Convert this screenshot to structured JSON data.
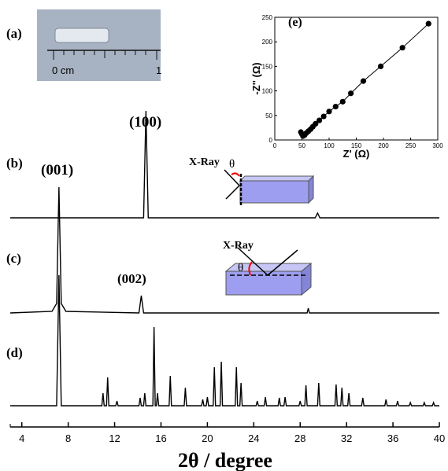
{
  "photo": {
    "label": "(a)",
    "scale_labels": [
      "0 cm",
      "1"
    ]
  },
  "chart_data": [
    {
      "type": "line",
      "xlabel": "2θ / degree",
      "xlim": [
        3,
        40
      ],
      "xticks": [
        4,
        8,
        12,
        16,
        20,
        24,
        28,
        32,
        36,
        40
      ],
      "color": "#000000",
      "series": [
        {
          "name": "(b)",
          "x": [
            3,
            14.5,
            14.7,
            14.9,
            29.3,
            29.5,
            29.7,
            40
          ],
          "values": [
            0,
            0,
            68,
            0,
            0,
            3,
            0,
            0
          ]
        },
        {
          "name": "(c)",
          "x": [
            3,
            6.6,
            7.0,
            7.2,
            7.4,
            7.8,
            14.1,
            14.3,
            14.5,
            28.6,
            28.7,
            28.8,
            40
          ],
          "values": [
            0,
            1,
            6,
            80,
            6,
            1,
            0,
            11,
            0,
            0,
            3,
            0,
            0
          ]
        },
        {
          "name": "(d)",
          "x": [
            3,
            7.0,
            7.2,
            7.4,
            10.9,
            11.0,
            11.1,
            11.3,
            11.4,
            11.5,
            12.1,
            12.2,
            12.3,
            14.1,
            14.2,
            14.3,
            14.5,
            14.6,
            14.7,
            15.3,
            15.4,
            15.5,
            15.6,
            15.7,
            15.8,
            16.7,
            16.8,
            16.9,
            18.0,
            18.1,
            18.2,
            19.5,
            19.6,
            19.7,
            19.9,
            20.0,
            20.1,
            20.5,
            20.6,
            20.7,
            21.1,
            21.2,
            21.3,
            22.4,
            22.5,
            22.6,
            22.8,
            22.9,
            23.0,
            24.2,
            24.3,
            24.4,
            24.9,
            25.0,
            25.1,
            26.1,
            26.2,
            26.3,
            26.6,
            26.7,
            26.8,
            27.9,
            28.0,
            28.1,
            28.4,
            28.5,
            28.6,
            29.5,
            29.6,
            29.7,
            31.0,
            31.1,
            31.2,
            31.5,
            31.6,
            31.7,
            32.1,
            32.2,
            32.3,
            33.3,
            33.4,
            33.5,
            35.3,
            35.4,
            35.5,
            36.3,
            36.4,
            36.5,
            37.4,
            37.5,
            37.6,
            38.6,
            38.7,
            38.8,
            39.4,
            39.5,
            39.6,
            40
          ],
          "values": [
            1,
            1,
            84,
            1,
            1,
            9,
            1,
            1,
            19,
            1,
            1,
            4,
            1,
            1,
            6,
            1,
            1,
            9,
            1,
            1,
            51,
            1,
            1,
            9,
            1,
            1,
            20,
            1,
            1,
            12.5,
            1,
            1,
            5,
            1,
            1,
            6.5,
            1,
            1,
            25.5,
            1,
            1,
            29,
            1,
            1,
            25.5,
            1,
            1,
            15.5,
            1,
            1,
            4,
            1,
            1,
            6.5,
            1,
            1,
            6,
            1,
            1,
            6.5,
            1,
            1,
            4,
            1,
            1,
            14,
            1,
            1,
            15.5,
            1,
            1,
            14.5,
            1,
            1,
            12.5,
            1,
            1,
            9,
            1,
            1,
            6,
            1,
            1,
            5,
            1,
            1,
            4,
            1,
            1,
            3,
            1,
            1,
            3,
            1,
            1,
            3,
            1,
            1
          ]
        }
      ],
      "annotations": [
        "(100)",
        "(001)",
        "(002)",
        "X-Ray",
        "θ",
        "X-Ray",
        "θ"
      ]
    },
    {
      "type": "scatter",
      "title": "(e)",
      "xlabel": "Z' (Ω)",
      "ylabel": "-Z'' (Ω)",
      "color": "#000000",
      "xlim": [
        0,
        300
      ],
      "xticks": [
        0,
        50,
        100,
        150,
        200,
        250,
        300
      ],
      "ylim": [
        0,
        250
      ],
      "yticks": [
        0,
        50,
        100,
        150,
        200,
        250
      ],
      "x": [
        48,
        50,
        52,
        55,
        58,
        62,
        66,
        70,
        75,
        82,
        90,
        100,
        112,
        125,
        140,
        163,
        195,
        235,
        283
      ],
      "values": [
        16,
        12,
        8,
        10,
        14,
        18,
        22,
        27,
        33,
        40,
        48,
        58,
        68,
        78,
        95,
        120,
        150,
        188,
        237
      ]
    }
  ]
}
